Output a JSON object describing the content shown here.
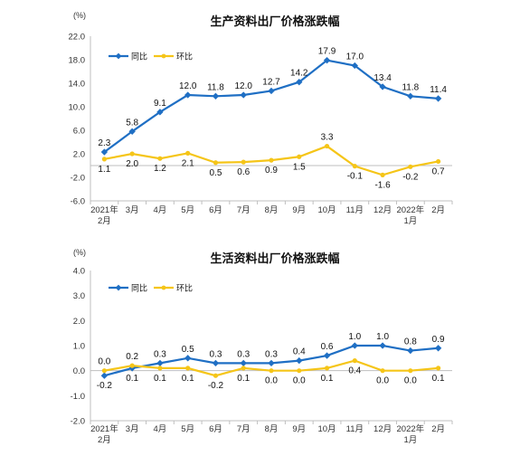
{
  "chart_data": [
    {
      "type": "line",
      "title": "生产资料出厂价格涨跌幅",
      "ylabel": "(%)",
      "xlabel": "",
      "ylim": [
        -6.0,
        22.0
      ],
      "yticks": [
        "22.0",
        "18.0",
        "14.0",
        "10.0",
        "6.0",
        "2.0",
        "-2.0",
        "-6.0"
      ],
      "ytick_values": [
        22,
        18,
        14,
        10,
        6,
        2,
        -2,
        -6
      ],
      "categories": [
        "2021年\n2月",
        "3月",
        "4月",
        "5月",
        "6月",
        "7月",
        "8月",
        "9月",
        "10月",
        "11月",
        "12月",
        "2022年\n1月",
        "2月"
      ],
      "series": [
        {
          "name": "同比",
          "color": "#1f6fc4",
          "values": [
            2.3,
            5.8,
            9.1,
            12.0,
            11.8,
            12.0,
            12.7,
            14.2,
            17.9,
            17.0,
            13.4,
            11.8,
            11.4
          ],
          "labels": [
            "2.3",
            "5.8",
            "9.1",
            "12.0",
            "11.8",
            "12.0",
            "12.7",
            "14.2",
            "17.9",
            "17.0",
            "13.4",
            "11.8",
            "11.4"
          ]
        },
        {
          "name": "环比",
          "color": "#f5c518",
          "values": [
            1.1,
            2.0,
            1.2,
            2.1,
            0.5,
            0.6,
            0.9,
            1.5,
            3.3,
            -0.1,
            -1.6,
            -0.2,
            0.7
          ],
          "labels": [
            "1.1",
            "2.0",
            "1.2",
            "2.1",
            "0.5",
            "0.6",
            "0.9",
            "1.5",
            "3.3",
            "-0.1",
            "-1.6",
            "-0.2",
            "0.7"
          ]
        }
      ],
      "legend": "top-left",
      "grid": false
    },
    {
      "type": "line",
      "title": "生活资料出厂价格涨跌幅",
      "ylabel": "(%)",
      "xlabel": "",
      "ylim": [
        -2.0,
        4.0
      ],
      "yticks": [
        "4.0",
        "3.0",
        "2.0",
        "1.0",
        "0.0",
        "-1.0",
        "-2.0"
      ],
      "ytick_values": [
        4,
        3,
        2,
        1,
        0,
        -1,
        -2
      ],
      "categories": [
        "2021年\n2月",
        "3月",
        "4月",
        "5月",
        "6月",
        "7月",
        "8月",
        "9月",
        "10月",
        "11月",
        "12月",
        "2022年\n1月",
        "2月"
      ],
      "series": [
        {
          "name": "同比",
          "color": "#1f6fc4",
          "values": [
            -0.2,
            0.1,
            0.3,
            0.5,
            0.3,
            0.3,
            0.3,
            0.4,
            0.6,
            1.0,
            1.0,
            0.8,
            0.9
          ],
          "labels": [
            "-0.2",
            "0.1",
            "0.3",
            "0.5",
            "0.3",
            "0.3",
            "0.3",
            "0.4",
            "0.6",
            "1.0",
            "1.0",
            "0.8",
            "0.9"
          ]
        },
        {
          "name": "环比",
          "color": "#f5c518",
          "values": [
            0.0,
            0.2,
            0.1,
            0.1,
            -0.2,
            0.1,
            0.0,
            0.0,
            0.1,
            0.4,
            0.0,
            0.0,
            0.1
          ],
          "labels": [
            "0.0",
            "0.2",
            "0.1",
            "0.1",
            "-0.2",
            "0.1",
            "0.0",
            "0.0",
            "0.1",
            "0.4",
            "0.0",
            "0.0",
            "0.1"
          ]
        }
      ],
      "legend": "top-left",
      "grid": false
    }
  ]
}
